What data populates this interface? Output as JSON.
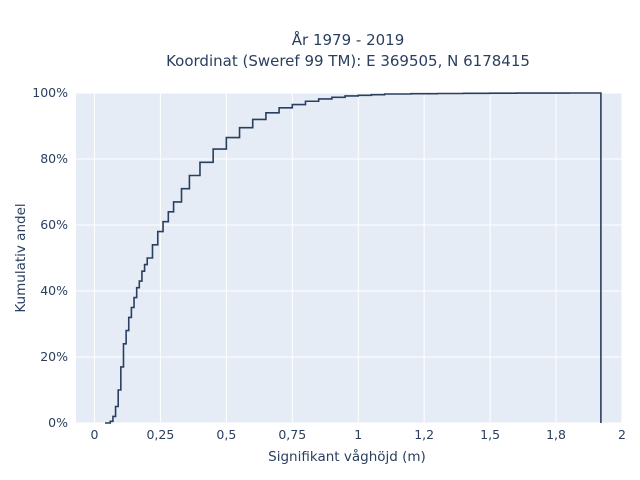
{
  "chart_data": {
    "type": "line",
    "subtype": "step-ecdf",
    "title": "År 1979 - 2019",
    "subtitle": "Koordinat (Sweref 99 TM): E 369505, N 6178415",
    "xlabel": "Signifikant våghöjd (m)",
    "ylabel": "Kumulativ andel",
    "xlim": [
      -0.07,
      2.0
    ],
    "ylim": [
      0,
      1.0
    ],
    "x_ticks": [
      0,
      0.25,
      0.5,
      0.75,
      1,
      1.25,
      1.5,
      1.75,
      2
    ],
    "x_tick_labels": [
      "0",
      "0,25",
      "0,5",
      "0,75",
      "1",
      "1,2",
      "1,5",
      "1,8",
      "2"
    ],
    "y_ticks": [
      0,
      0.2,
      0.4,
      0.6,
      0.8,
      1.0
    ],
    "y_tick_labels": [
      "0%",
      "20%",
      "40%",
      "60%",
      "80%",
      "100%"
    ],
    "grid": true,
    "colors": {
      "plot_bg": "#e5ecf6",
      "line": "#2a3f5f",
      "grid": "#ffffff",
      "text": "#2a3f5f"
    },
    "series": [
      {
        "x": [
          0.04,
          0.06,
          0.07,
          0.08,
          0.09,
          0.1,
          0.11,
          0.12,
          0.13,
          0.14,
          0.15,
          0.16,
          0.17,
          0.18,
          0.19,
          0.2,
          0.22,
          0.24,
          0.26,
          0.28,
          0.3,
          0.33,
          0.36,
          0.4,
          0.45,
          0.5,
          0.55,
          0.6,
          0.65,
          0.7,
          0.75,
          0.8,
          0.85,
          0.9,
          0.95,
          1.0,
          1.05,
          1.1,
          1.2,
          1.3,
          1.4,
          1.5,
          1.6,
          1.7,
          1.8,
          1.92,
          1.92
        ],
        "y": [
          0.0,
          0.005,
          0.02,
          0.05,
          0.1,
          0.17,
          0.24,
          0.28,
          0.32,
          0.35,
          0.38,
          0.41,
          0.43,
          0.46,
          0.48,
          0.5,
          0.54,
          0.58,
          0.61,
          0.64,
          0.67,
          0.71,
          0.75,
          0.79,
          0.83,
          0.865,
          0.895,
          0.92,
          0.94,
          0.955,
          0.965,
          0.975,
          0.982,
          0.987,
          0.991,
          0.993,
          0.995,
          0.997,
          0.998,
          0.9985,
          0.999,
          0.9995,
          0.9997,
          0.9999,
          1.0,
          1.0,
          0.0
        ]
      }
    ]
  }
}
